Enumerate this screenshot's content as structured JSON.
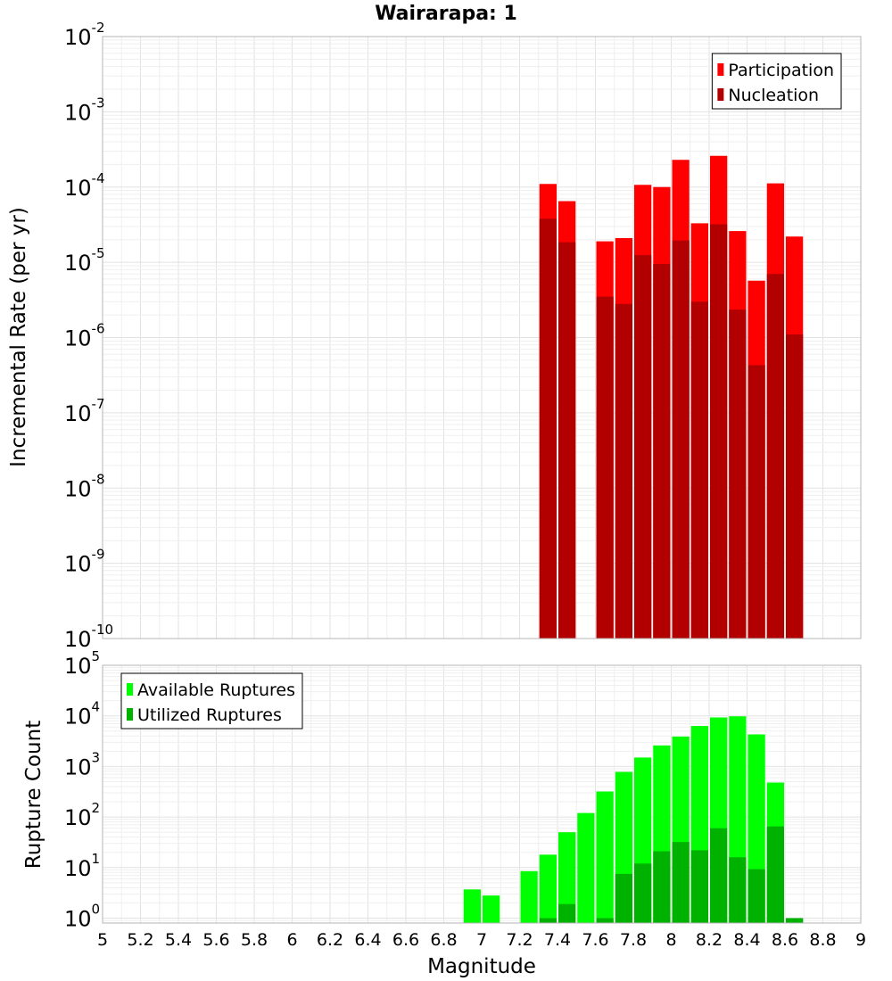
{
  "chart_data": [
    {
      "type": "bar",
      "title": "Wairarapa: 1",
      "ylabel": "Incremental Rate (per yr)",
      "xlabel": "",
      "xlim": [
        5,
        9
      ],
      "ylim": [
        1e-10,
        0.01
      ],
      "yscale": "log",
      "bar_width": 0.1,
      "grid": true,
      "legend_position": "top-right",
      "y_ticks": [
        {
          "base": "10",
          "exp": "-10"
        },
        {
          "base": "10",
          "exp": "-9"
        },
        {
          "base": "10",
          "exp": "-8"
        },
        {
          "base": "10",
          "exp": "-7"
        },
        {
          "base": "10",
          "exp": "-6"
        },
        {
          "base": "10",
          "exp": "-5"
        },
        {
          "base": "10",
          "exp": "-4"
        },
        {
          "base": "10",
          "exp": "-3"
        },
        {
          "base": "10",
          "exp": "-2"
        }
      ],
      "series": [
        {
          "name": "Participation",
          "color": "#ff0000",
          "points": [
            {
              "x": 7.35,
              "y": 0.00011
            },
            {
              "x": 7.45,
              "y": 6.5e-05
            },
            {
              "x": 7.65,
              "y": 1.9e-05
            },
            {
              "x": 7.75,
              "y": 2.1e-05
            },
            {
              "x": 7.85,
              "y": 0.000107
            },
            {
              "x": 7.95,
              "y": 0.0001
            },
            {
              "x": 8.05,
              "y": 0.00023
            },
            {
              "x": 8.15,
              "y": 3.3e-05
            },
            {
              "x": 8.25,
              "y": 0.00026
            },
            {
              "x": 8.35,
              "y": 2.6e-05
            },
            {
              "x": 8.45,
              "y": 5.7e-06
            },
            {
              "x": 8.55,
              "y": 0.000112
            },
            {
              "x": 8.65,
              "y": 2.2e-05
            }
          ]
        },
        {
          "name": "Nucleation",
          "color": "#b20000",
          "points": [
            {
              "x": 7.35,
              "y": 3.8e-05
            },
            {
              "x": 7.45,
              "y": 1.85e-05
            },
            {
              "x": 7.65,
              "y": 3.5e-06
            },
            {
              "x": 7.75,
              "y": 2.8e-06
            },
            {
              "x": 7.85,
              "y": 1.25e-05
            },
            {
              "x": 7.95,
              "y": 9.5e-06
            },
            {
              "x": 8.05,
              "y": 1.95e-05
            },
            {
              "x": 8.15,
              "y": 3e-06
            },
            {
              "x": 8.25,
              "y": 3.2e-05
            },
            {
              "x": 8.35,
              "y": 2.35e-06
            },
            {
              "x": 8.45,
              "y": 4.3e-07
            },
            {
              "x": 8.55,
              "y": 7e-06
            },
            {
              "x": 8.65,
              "y": 1.1e-06
            }
          ]
        }
      ]
    },
    {
      "type": "bar",
      "title": "",
      "ylabel": "Rupture Count",
      "xlabel": "Magnitude",
      "xlim": [
        5,
        9
      ],
      "ylim": [
        0.8,
        100000.0
      ],
      "yscale": "log",
      "bar_width": 0.1,
      "grid": true,
      "legend_position": "top-left",
      "x_ticks": [
        "5",
        "5.2",
        "5.4",
        "5.6",
        "5.8",
        "6",
        "6.2",
        "6.4",
        "6.6",
        "6.8",
        "7",
        "7.2",
        "7.4",
        "7.6",
        "7.8",
        "8",
        "8.2",
        "8.4",
        "8.6",
        "8.8",
        "9"
      ],
      "y_ticks": [
        {
          "base": "10",
          "exp": "0"
        },
        {
          "base": "10",
          "exp": "1"
        },
        {
          "base": "10",
          "exp": "2"
        },
        {
          "base": "10",
          "exp": "3"
        },
        {
          "base": "10",
          "exp": "4"
        },
        {
          "base": "10",
          "exp": "5"
        }
      ],
      "series": [
        {
          "name": "Available Ruptures",
          "color": "#00ff00",
          "points": [
            {
              "x": 6.95,
              "y": 3.7
            },
            {
              "x": 7.05,
              "y": 2.8
            },
            {
              "x": 7.25,
              "y": 8.5
            },
            {
              "x": 7.35,
              "y": 18
            },
            {
              "x": 7.45,
              "y": 50
            },
            {
              "x": 7.55,
              "y": 120
            },
            {
              "x": 7.65,
              "y": 320
            },
            {
              "x": 7.75,
              "y": 780
            },
            {
              "x": 7.85,
              "y": 1500
            },
            {
              "x": 7.95,
              "y": 2600
            },
            {
              "x": 8.05,
              "y": 3900
            },
            {
              "x": 8.15,
              "y": 6300
            },
            {
              "x": 8.25,
              "y": 9300
            },
            {
              "x": 8.35,
              "y": 9800
            },
            {
              "x": 8.45,
              "y": 4300
            },
            {
              "x": 8.55,
              "y": 480
            },
            {
              "x": 8.65,
              "y": 1
            }
          ]
        },
        {
          "name": "Utilized Ruptures",
          "color": "#00b200",
          "points": [
            {
              "x": 7.35,
              "y": 1
            },
            {
              "x": 7.45,
              "y": 1.9
            },
            {
              "x": 7.65,
              "y": 1
            },
            {
              "x": 7.75,
              "y": 7.5
            },
            {
              "x": 7.85,
              "y": 12
            },
            {
              "x": 7.95,
              "y": 21
            },
            {
              "x": 8.05,
              "y": 32
            },
            {
              "x": 8.15,
              "y": 22
            },
            {
              "x": 8.25,
              "y": 60
            },
            {
              "x": 8.35,
              "y": 16
            },
            {
              "x": 8.45,
              "y": 9.3
            },
            {
              "x": 8.55,
              "y": 65
            },
            {
              "x": 8.65,
              "y": 1
            }
          ]
        }
      ]
    }
  ]
}
